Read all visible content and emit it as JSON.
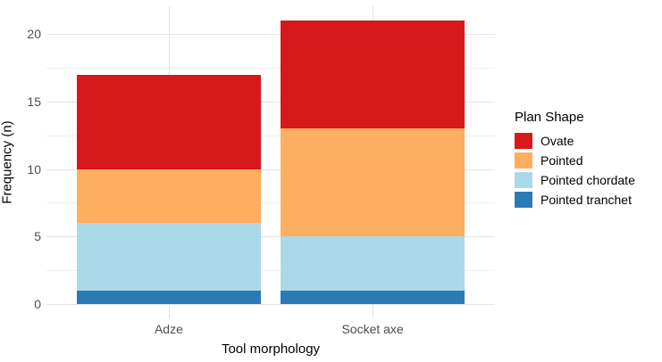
{
  "chart_data": {
    "type": "bar",
    "stacked": true,
    "xlabel": "Tool morphology",
    "ylabel": "Frequency (n)",
    "categories": [
      "Adze",
      "Socket axe"
    ],
    "series": [
      {
        "name": "Pointed tranchet",
        "color": "#2C7BB6",
        "values": [
          1,
          1
        ]
      },
      {
        "name": "Pointed chordate",
        "color": "#ABD9E9",
        "values": [
          5,
          4
        ]
      },
      {
        "name": "Pointed",
        "color": "#FDAE61",
        "values": [
          4,
          8
        ]
      },
      {
        "name": "Ovate",
        "color": "#D7191C",
        "values": [
          7,
          8
        ]
      }
    ],
    "totals": [
      17,
      21
    ],
    "ylim": [
      0,
      21
    ],
    "y_ticks": [
      0,
      5,
      10,
      15,
      20
    ],
    "y_minor_ticks": [
      2.5,
      7.5,
      12.5,
      17.5
    ],
    "grid": true,
    "legend": {
      "title": "Plan Shape",
      "position": "right",
      "items": [
        "Ovate",
        "Pointed",
        "Pointed chordate",
        "Pointed tranchet"
      ]
    },
    "colors": {
      "background": "#FFFFFF",
      "grid_major": "#E4E4E4",
      "grid_minor": "#F0F0F0",
      "tick_label": "#4D4D4D",
      "axis_title": "#000000"
    }
  }
}
